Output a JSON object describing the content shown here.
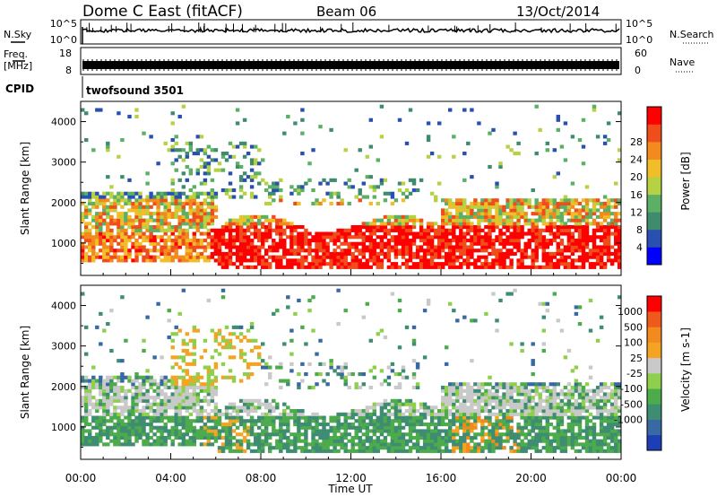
{
  "header": {
    "station": "Dome C East (fitACF)",
    "beam": "Beam 06",
    "date": "13/Oct/2014"
  },
  "strip_labels": {
    "nsky": "N.Sky",
    "freq_top": "Freq.",
    "freq_unit": "[MHz]",
    "cpid": "CPID",
    "nsearch": "N.Search",
    "nave": "Nave",
    "cpid_name": "twofsound 3501"
  },
  "strip_ticks": {
    "noise_left": [
      "10^5",
      "10^0"
    ],
    "noise_right": [
      "10^5",
      "10^0"
    ],
    "freq_left": [
      "18",
      "8"
    ],
    "nave_right": [
      "60",
      "0"
    ]
  },
  "chart_data": [
    {
      "type": "heatmap",
      "name": "power",
      "ylabel": "Slant Range [km]",
      "ylim": [
        200,
        4500
      ],
      "yticks": [
        1000,
        2000,
        3000,
        4000
      ],
      "ytick_labels": [
        "1000",
        "2000",
        "3000",
        "4000"
      ],
      "xlim": [
        0,
        24
      ],
      "colorbar": {
        "label": "Power [dB]",
        "tick_labels": [
          "4",
          "8",
          "12",
          "16",
          "20",
          "24",
          "28"
        ],
        "colors": [
          "#0000ff",
          "#2950b0",
          "#3f8b6d",
          "#5bb065",
          "#b6d242",
          "#f1be29",
          "#f28a1d",
          "#ef4e1c",
          "#ff0000"
        ]
      }
    },
    {
      "type": "heatmap",
      "name": "velocity",
      "ylabel": "Slant Range [km]",
      "ylim": [
        200,
        4500
      ],
      "yticks": [
        1000,
        2000,
        3000,
        4000
      ],
      "ytick_labels": [
        "1000",
        "2000",
        "3000",
        "4000"
      ],
      "xlim": [
        0,
        24
      ],
      "colorbar": {
        "label": "Velocity [m s-1]",
        "tick_labels": [
          "1000",
          "500",
          "100",
          "25",
          "-25",
          "-100",
          "-500",
          "-1000"
        ],
        "colors": [
          "#1d3fb5",
          "#3969a5",
          "#3e8c72",
          "#4cab4a",
          "#8ed04c",
          "#c9c9c9",
          "#f4a323",
          "#f28a1d",
          "#ef5a1c",
          "#ff0000"
        ]
      }
    }
  ],
  "xaxis": {
    "label": "Time UT",
    "tick_labels": [
      "00:00",
      "04:00",
      "08:00",
      "12:00",
      "16:00",
      "20:00",
      "00:00"
    ]
  }
}
